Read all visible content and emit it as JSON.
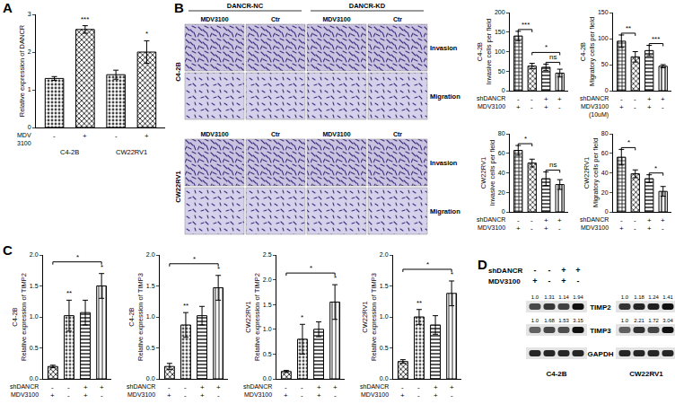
{
  "panel_labels": [
    "A",
    "B",
    "C",
    "D"
  ],
  "chart_data": [
    {
      "type": "bar",
      "y_label": [
        "Relative expression of DANCR"
      ],
      "categories": [
        null,
        null,
        null,
        null
      ],
      "values": [
        1.3,
        2.6,
        1.4,
        2.0
      ],
      "errors": [
        0.05,
        0.1,
        0.12,
        0.3
      ],
      "colors": [
        "#444444",
        "#222222",
        "#444444",
        "#222222"
      ],
      "ylim": [
        0,
        3
      ],
      "yticks": [
        0,
        1,
        2,
        3
      ],
      "grid": false,
      "tick_labels": "y",
      "conditions": [
        {
          "label": [
            "MDV",
            "3100"
          ],
          "marks": [
            "-",
            "+",
            "-",
            "+"
          ]
        }
      ],
      "groups": [
        {
          "label": "C4-2B",
          "bars": [
            0,
            1
          ]
        },
        {
          "label": "CW22RV1",
          "bars": [
            2,
            3
          ]
        }
      ],
      "significance": [
        {
          "bars": [
            1
          ],
          "text": "***"
        },
        {
          "bars": [
            3
          ],
          "text": "*"
        }
      ]
    },
    {
      "type": "bar",
      "y_label": [
        "C4-2B",
        "Invasive cells per field"
      ],
      "categories": [
        null,
        null,
        null,
        null
      ],
      "values": [
        140,
        63,
        60,
        45
      ],
      "errors": [
        12,
        7,
        8,
        10
      ],
      "colors": [
        "#222222",
        "#333333",
        "#333333",
        "#444444"
      ],
      "ylim": [
        0,
        200
      ],
      "yticks": [
        0,
        50,
        100,
        150,
        200
      ],
      "grid": false,
      "tick_labels": "y",
      "conditions": [
        {
          "label": [
            "shDANCR"
          ],
          "marks": [
            "-",
            "-",
            "+",
            "+"
          ]
        },
        {
          "label": [
            "MDV3100"
          ],
          "marks": [
            "+",
            "-",
            "+",
            "-"
          ]
        }
      ],
      "significance": [
        {
          "bars": [
            0,
            1
          ],
          "text": "***"
        },
        {
          "bars": [
            1,
            3
          ],
          "text": "*"
        },
        {
          "bars": [
            2,
            3
          ],
          "text": "ns"
        }
      ]
    },
    {
      "type": "bar",
      "y_label": [
        "C4-2B",
        "Migratory cells per field"
      ],
      "categories": [
        null,
        null,
        null,
        null
      ],
      "values": [
        95,
        65,
        77,
        47
      ],
      "errors": [
        12,
        10,
        10,
        3
      ],
      "colors": [
        "#222222",
        "#333333",
        "#333333",
        "#444444"
      ],
      "ylim": [
        0,
        150
      ],
      "yticks": [
        0,
        50,
        100,
        150
      ],
      "grid": false,
      "tick_labels": "y",
      "conditions": [
        {
          "label": [
            "shDANCR"
          ],
          "marks": [
            "-",
            "-",
            "+",
            "+"
          ]
        },
        {
          "label": [
            "MDV3100",
            "(10uM)"
          ],
          "marks": [
            "+",
            "-",
            "+",
            "-"
          ]
        }
      ],
      "significance": [
        {
          "bars": [
            0,
            1
          ],
          "text": "**"
        },
        {
          "bars": [
            2,
            3
          ],
          "text": "***"
        }
      ]
    },
    {
      "type": "bar",
      "y_label": [
        "CW22RV1",
        "Invasive cells per field"
      ],
      "categories": [
        null,
        null,
        null,
        null
      ],
      "values": [
        63,
        50,
        34,
        28
      ],
      "errors": [
        5,
        4,
        7,
        5
      ],
      "colors": [
        "#222222",
        "#333333",
        "#333333",
        "#444444"
      ],
      "ylim": [
        0,
        80
      ],
      "yticks": [
        0,
        20,
        40,
        60,
        80
      ],
      "grid": false,
      "tick_labels": "y",
      "conditions": [
        {
          "label": [
            "shDANCR"
          ],
          "marks": [
            "-",
            "-",
            "+",
            "+"
          ]
        },
        {
          "label": [
            "MDV3100"
          ],
          "marks": [
            "+",
            "-",
            "+",
            "-"
          ]
        }
      ],
      "significance": [
        {
          "bars": [
            0,
            1
          ],
          "text": "*"
        },
        {
          "bars": [
            2,
            3
          ],
          "text": "ns"
        }
      ]
    },
    {
      "type": "bar",
      "y_label": [
        "CW22RV1",
        "Migratory cells per field"
      ],
      "categories": [
        null,
        null,
        null,
        null
      ],
      "values": [
        56,
        39,
        34,
        21
      ],
      "errors": [
        8,
        4,
        4,
        5
      ],
      "colors": [
        "#222222",
        "#333333",
        "#333333",
        "#444444"
      ],
      "ylim": [
        0,
        80
      ],
      "yticks": [
        0,
        20,
        40,
        60,
        80
      ],
      "grid": false,
      "tick_labels": "y",
      "conditions": [
        {
          "label": [
            "shDANCR"
          ],
          "marks": [
            "-",
            "-",
            "+",
            "+"
          ]
        },
        {
          "label": [
            "MDV3100"
          ],
          "marks": [
            "+",
            "-",
            "+",
            "-"
          ]
        }
      ],
      "significance": [
        {
          "bars": [
            0,
            1
          ],
          "text": "*"
        },
        {
          "bars": [
            2,
            3
          ],
          "text": "*"
        }
      ]
    },
    {
      "type": "bar",
      "y_label": [
        "C4-2B",
        "Relative expression of TIMP2"
      ],
      "categories": [
        null,
        null,
        null,
        null
      ],
      "values": [
        0.2,
        1.02,
        1.07,
        1.5
      ],
      "errors": [
        0.02,
        0.25,
        0.2,
        0.2
      ],
      "colors": [
        "#222222",
        "#555555",
        "#333333",
        "#777777"
      ],
      "ylim": [
        0,
        2
      ],
      "yticks": [
        {
          "value": 0,
          "label": "0.0"
        },
        {
          "value": 0.5,
          "label": "0.5"
        },
        {
          "value": 1,
          "label": "1.0"
        },
        {
          "value": 1.5,
          "label": "1.5"
        },
        {
          "value": 2,
          "label": "2.0"
        }
      ],
      "grid": false,
      "tick_labels": "y",
      "conditions": [
        {
          "label": [
            "shDANCR"
          ],
          "marks": [
            "-",
            "-",
            "+",
            "+"
          ]
        },
        {
          "label": [
            "MDV3100"
          ],
          "marks": [
            "+",
            "-",
            "+",
            "-"
          ]
        }
      ],
      "significance": [
        {
          "bars": [
            1
          ],
          "text": "**"
        },
        {
          "bars": [
            3
          ],
          "text": "*"
        },
        {
          "bars": [
            0,
            3
          ],
          "text": "*"
        }
      ]
    },
    {
      "type": "bar",
      "y_label": [
        "C4-2B",
        "Relative expression of TIMP3"
      ],
      "categories": [
        null,
        null,
        null,
        null
      ],
      "values": [
        0.2,
        0.87,
        1.02,
        1.47
      ],
      "errors": [
        0.05,
        0.2,
        0.15,
        0.2
      ],
      "colors": [
        "#222222",
        "#555555",
        "#333333",
        "#777777"
      ],
      "ylim": [
        0,
        2
      ],
      "yticks": [
        {
          "value": 0,
          "label": "0.0"
        },
        {
          "value": 0.5,
          "label": "0.5"
        },
        {
          "value": 1,
          "label": "1.0"
        },
        {
          "value": 1.5,
          "label": "1.5"
        },
        {
          "value": 2,
          "label": "2.0"
        }
      ],
      "grid": false,
      "tick_labels": "y",
      "conditions": [
        {
          "label": [
            "shDANCR"
          ],
          "marks": [
            "-",
            "-",
            "+",
            "+"
          ]
        },
        {
          "label": [
            "MDV3100"
          ],
          "marks": [
            "+",
            "-",
            "+",
            "-"
          ]
        }
      ],
      "significance": [
        {
          "bars": [
            1
          ],
          "text": "**"
        },
        {
          "bars": [
            3
          ],
          "text": "*"
        },
        {
          "bars": [
            0,
            3
          ],
          "text": "*"
        }
      ]
    },
    {
      "type": "bar",
      "y_label": [
        "CW22RV1",
        "Relative expression of TIMP2"
      ],
      "categories": [
        null,
        null,
        null,
        null
      ],
      "values": [
        0.15,
        0.8,
        1.0,
        1.55
      ],
      "errors": [
        0.02,
        0.3,
        0.15,
        0.35
      ],
      "colors": [
        "#222222",
        "#555555",
        "#333333",
        "#777777"
      ],
      "ylim": [
        0,
        2.5
      ],
      "yticks": [
        {
          "value": 0,
          "label": "0.0"
        },
        {
          "value": 0.5,
          "label": "0.5"
        },
        {
          "value": 1,
          "label": "1.0"
        },
        {
          "value": 1.5,
          "label": "1.5"
        },
        {
          "value": 2,
          "label": "2.0"
        },
        {
          "value": 2.5,
          "label": "2.5"
        }
      ],
      "grid": false,
      "tick_labels": "y",
      "conditions": [
        {
          "label": [
            "shDANCR"
          ],
          "marks": [
            "-",
            "-",
            "+",
            "+"
          ]
        },
        {
          "label": [
            "MDV3100"
          ],
          "marks": [
            "+",
            "-",
            "+",
            "-"
          ]
        }
      ],
      "significance": [
        {
          "bars": [
            1
          ],
          "text": "*"
        },
        {
          "bars": [
            3
          ],
          "text": "*"
        },
        {
          "bars": [
            0,
            3
          ],
          "text": "*"
        }
      ]
    },
    {
      "type": "bar",
      "y_label": [
        "CW22RV1",
        "Relative expression of TIMP3"
      ],
      "categories": [
        null,
        null,
        null,
        null
      ],
      "values": [
        0.28,
        1.0,
        0.87,
        1.38
      ],
      "errors": [
        0.03,
        0.12,
        0.15,
        0.2
      ],
      "colors": [
        "#222222",
        "#555555",
        "#333333",
        "#777777"
      ],
      "ylim": [
        0,
        2
      ],
      "yticks": [
        {
          "value": 0,
          "label": "0.0"
        },
        {
          "value": 0.5,
          "label": "0.5"
        },
        {
          "value": 1,
          "label": "1.0"
        },
        {
          "value": 1.5,
          "label": "1.5"
        },
        {
          "value": 2,
          "label": "2.0"
        }
      ],
      "grid": false,
      "tick_labels": "y",
      "conditions": [
        {
          "label": [
            "shDANCR"
          ],
          "marks": [
            "-",
            "-",
            "+",
            "+"
          ]
        },
        {
          "label": [
            "MDV3100"
          ],
          "marks": [
            "+",
            "-",
            "+",
            "-"
          ]
        }
      ],
      "significance": [
        {
          "bars": [
            1
          ],
          "text": "**"
        },
        {
          "bars": [
            3
          ],
          "text": "*"
        },
        {
          "bars": [
            0,
            3
          ],
          "text": "*"
        }
      ]
    }
  ],
  "images": {
    "groups": [
      "DANCR-NC",
      "DANCR-KD"
    ],
    "columns": [
      "MDV3100",
      "Ctr",
      "MDV3100",
      "Ctr"
    ],
    "rows": [
      "Invasion",
      "Migration"
    ],
    "cell_lines": [
      "C4-2B",
      "CW22RV1"
    ]
  },
  "blot": {
    "conditions": [
      {
        "label": "shDANCR",
        "marks": [
          "-",
          "-",
          "+",
          "+"
        ]
      },
      {
        "label": "MDV3100",
        "marks": [
          "+",
          "-",
          "+",
          "-"
        ]
      }
    ],
    "cell_lines": [
      {
        "name": "C4-2B",
        "bands": [
          {
            "protein": "TIMP2",
            "values": [
              1.0,
              1.31,
              1.14,
              1.94
            ],
            "value_labels": [
              "1.0",
              "1.31",
              "1.14",
              "1.94"
            ]
          },
          {
            "protein": "TIMP3",
            "values": [
              1.0,
              1.68,
              1.53,
              3.15
            ],
            "value_labels": [
              "1.0",
              "1.68",
              "1.53",
              "3.15"
            ]
          },
          {
            "protein": "GAPDH"
          }
        ]
      },
      {
        "name": "CW22RV1",
        "bands": [
          {
            "protein": "TIMP2",
            "values": [
              1.0,
              1.18,
              1.24,
              1.41
            ],
            "value_labels": [
              "1.0",
              "1.18",
              "1.24",
              "1.41"
            ]
          },
          {
            "protein": "TIMP3",
            "values": [
              1.0,
              2.21,
              1.72,
              3.04
            ],
            "value_labels": [
              "1.0",
              "2.21",
              "1.72",
              "3.04"
            ]
          },
          {
            "protein": "GAPDH"
          }
        ]
      }
    ]
  }
}
